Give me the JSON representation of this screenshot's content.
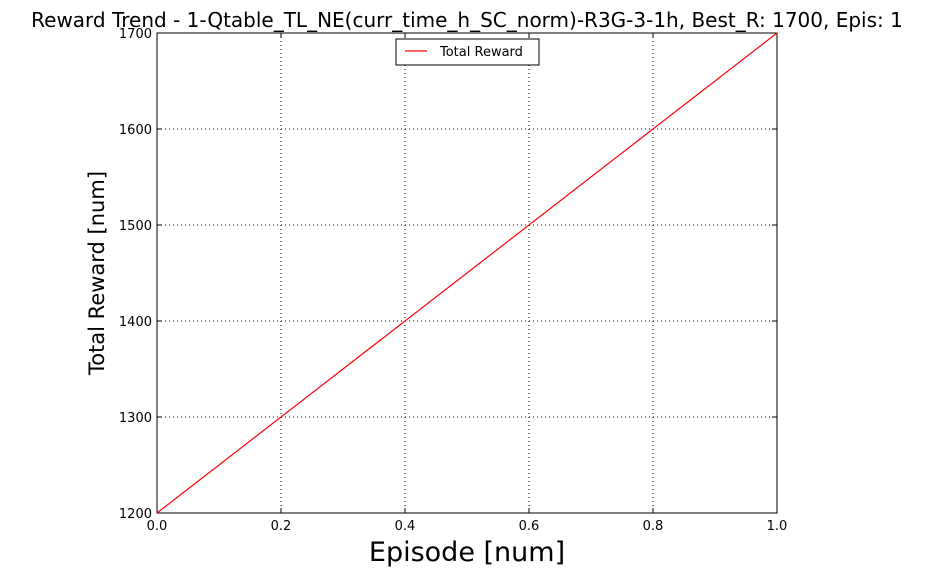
{
  "chart_data": {
    "type": "line",
    "title": "Reward Trend - 1-Qtable_TL_NE(curr_time_h_SC_norm)-R3G-3-1h, Best_R: 1700, Epis: 1",
    "xlabel": "Episode [num]",
    "ylabel": "Total Reward [num]",
    "xlim": [
      0.0,
      1.0
    ],
    "ylim": [
      1200,
      1700
    ],
    "xticks": [
      "0.0",
      "0.2",
      "0.4",
      "0.6",
      "0.8",
      "1.0"
    ],
    "yticks": [
      "1200",
      "1300",
      "1400",
      "1500",
      "1600",
      "1700"
    ],
    "grid": true,
    "legend_position": "top-center",
    "series": [
      {
        "name": "Total Reward",
        "color": "#ff0000",
        "x": [
          0,
          1
        ],
        "y": [
          1200,
          1700
        ]
      }
    ]
  }
}
